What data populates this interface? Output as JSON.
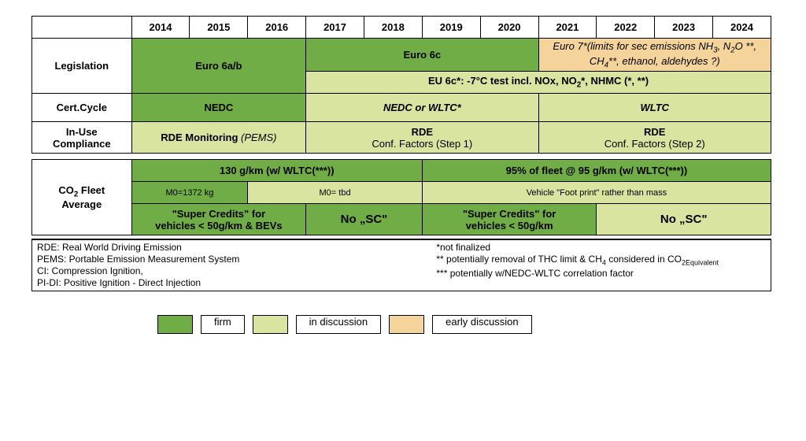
{
  "years": [
    "2014",
    "2015",
    "2016",
    "2017",
    "2018",
    "2019",
    "2020",
    "2021",
    "2022",
    "2023",
    "2024"
  ],
  "colors": {
    "firm": "#70ad47",
    "discussion": "#d8e4a0",
    "early": "#f4d49a",
    "border": "#000000",
    "background": "#ffffff"
  },
  "typography": {
    "font_family": "Arial",
    "base_size_pt": 10,
    "heading_weight": "bold"
  },
  "rows": {
    "legislation": {
      "label": "Legislation",
      "cells": [
        {
          "text": "Euro 6a/b",
          "span": 3,
          "style": "firm",
          "bold": true,
          "height": 2
        },
        {
          "text": "Euro 6c",
          "span": 4,
          "style": "firm",
          "bold": true
        },
        {
          "html": "<i>Euro 7*(limits for sec emissions NH<sub>3</sub>, N<sub>2</sub>O **, CH<sub>4</sub>**, ethanol, aldehydes ?)</i>",
          "span": 4,
          "style": "early"
        },
        {
          "html": "EU 6c*: -7°C test incl. NOx, NO<sub>2</sub>*, NHMC (*, **)",
          "span": 8,
          "style": "disc",
          "bold": true
        }
      ]
    },
    "cert": {
      "label": "Cert.Cycle",
      "cells": [
        {
          "text": "NEDC",
          "span": 3,
          "style": "firm",
          "bold": true
        },
        {
          "html": "<i><b>NEDC or WLTC*</b></i>",
          "span": 4,
          "style": "disc"
        },
        {
          "html": "<i><b>WLTC</b></i>",
          "span": 4,
          "style": "disc"
        }
      ]
    },
    "inuse": {
      "label_html": "In-Use<br>Compliance",
      "cells": [
        {
          "html": "<b>RDE Monitoring </b><i>(PEMS)</i>",
          "span": 3,
          "style": "disc"
        },
        {
          "html": "<b>RDE</b><br>Conf. Factors (Step 1)",
          "span": 4,
          "style": "disc"
        },
        {
          "html": "<b>RDE</b><br>Conf. Factors (Step 2)",
          "span": 4,
          "style": "disc"
        }
      ]
    },
    "co2": {
      "label_html": "CO<sub>2</sub> Fleet<br>Average",
      "line1": [
        {
          "text": "130 g/km (w/ WLTC(***))",
          "span": 5,
          "style": "firm",
          "bold": true
        },
        {
          "text": "95% of fleet @ 95 g/km (w/ WLTC(***))",
          "span": 6,
          "style": "firm",
          "bold": true
        }
      ],
      "line2": [
        {
          "text": "M0=1372 kg",
          "span": 2,
          "style": "firm",
          "small": true
        },
        {
          "text": "M0= tbd",
          "span": 3,
          "style": "disc",
          "small": true
        },
        {
          "text": "Vehicle \"Foot print\" rather than mass",
          "span": 6,
          "style": "disc",
          "small": true
        }
      ],
      "line3": [
        {
          "html": "<b>\"Super Credits\" for<br>vehicles &lt; 50g/km &amp; BEVs</b>",
          "span": 3,
          "style": "firm"
        },
        {
          "text": "No „SC\"",
          "span": 2,
          "style": "firm",
          "bold": true
        },
        {
          "html": "<b>\"Super Credits\" for<br>vehicles &lt; 50g/km</b>",
          "span": 3,
          "style": "firm"
        },
        {
          "text": "No „SC\"",
          "span": 3,
          "style": "disc",
          "bold": true
        }
      ]
    }
  },
  "footnotes": {
    "left": [
      "RDE: Real World Driving Emission",
      "PEMS: Portable Emission Measurement System",
      "CI: Compression Ignition,",
      "PI-DI: Positive Ignition - Direct Injection"
    ],
    "right": [
      "*not finalized",
      "** potentially removal of THC limit & CH<sub>4</sub> considered in CO<sub>2Equivalent</sub>",
      "*** potentially w/NEDC-WLTC correlation factor"
    ]
  },
  "legend": [
    {
      "label": "firm",
      "style": "firm"
    },
    {
      "label": "in discussion",
      "style": "disc"
    },
    {
      "label": "early discussion",
      "style": "early"
    }
  ]
}
